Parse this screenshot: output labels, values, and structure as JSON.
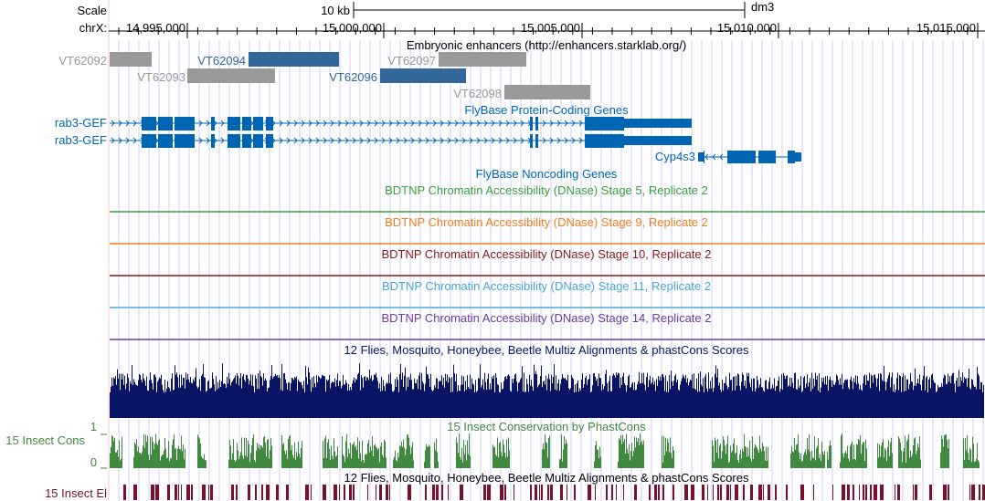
{
  "header": {
    "scale_label": "Scale",
    "scale_bar_label": "10 kb",
    "assembly": "dm3",
    "chrom_label": "chrX:",
    "positions": [
      "14,995,000",
      "15,000,000",
      "15,005,000",
      "15,010,000",
      "15,015,000"
    ]
  },
  "colors": {
    "guide_line": "#ccccff",
    "left_boundary": "#ffcccc",
    "enhancer_gray": "#999999",
    "enhancer_blue": "#336699",
    "gene_blue": "#0066b3",
    "stage5": "#3aa03a",
    "stage9": "#f07f1b",
    "stage10": "#8b1a1a",
    "stage11": "#4aa7d6",
    "stage14": "#6a3da0",
    "multiz": "#0a1464",
    "phastcons": "#3f8a3f",
    "elements": "#7a0f2e"
  },
  "tracks": {
    "enhancers": {
      "title": "Embryonic enhancers (http://enhancers.starklab.org/)",
      "items": [
        {
          "label": "VT62092",
          "color": "gray"
        },
        {
          "label": "VT62093",
          "color": "gray"
        },
        {
          "label": "VT62094",
          "color": "blue"
        },
        {
          "label": "VT62096",
          "color": "blue"
        },
        {
          "label": "VT62097",
          "color": "gray"
        },
        {
          "label": "VT62098",
          "color": "gray"
        }
      ]
    },
    "flybase_coding": {
      "title": "FlyBase Protein-Coding Genes",
      "genes": [
        "rab3-GEF",
        "rab3-GEF",
        "Cyp4s3"
      ]
    },
    "flybase_noncoding": {
      "title": "FlyBase Noncoding Genes"
    },
    "dnase_stage5": {
      "title": "BDTNP Chromatin Accessibility (DNase) Stage 5, Replicate 2"
    },
    "dnase_stage9": {
      "title": "BDTNP Chromatin Accessibility (DNase) Stage 9, Replicate 2"
    },
    "dnase_stage10": {
      "title": "BDTNP Chromatin Accessibility (DNase) Stage 10, Replicate 2"
    },
    "dnase_stage11": {
      "title": "BDTNP Chromatin Accessibility (DNase) Stage 11, Replicate 2"
    },
    "dnase_stage14": {
      "title": "BDTNP Chromatin Accessibility (DNase) Stage 14, Replicate 2"
    },
    "multiz": {
      "title": "12 Flies, Mosquito, Honeybee, Beetle Multiz Alignments & phastCons Scores"
    },
    "phastcons": {
      "title": "15 Insect Conservation by PhastCons",
      "side_label": "15 Insect Cons",
      "axis_max": "1",
      "axis_min": "0"
    },
    "elements": {
      "title": "12 Flies, Mosquito, Honeybee, Beetle Multiz Alignments & phastCons Scores",
      "side_label": "15 Insect El"
    }
  }
}
